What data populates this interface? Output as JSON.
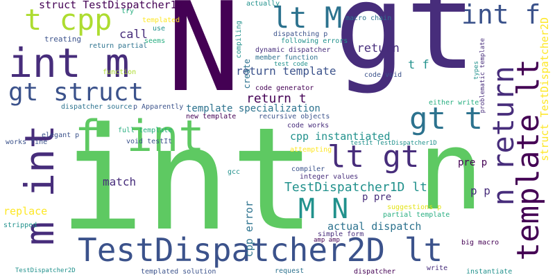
{
  "words": {
    "w1": "int",
    "w2": "gt",
    "w3": "N",
    "w4": "n",
    "w5": "TestDispatcher2D lt",
    "w6": "int m",
    "w7": "gt struct",
    "w8": "f int",
    "w9": "m int",
    "w10": "t cpp",
    "w11": "lt M",
    "w12": "int f",
    "w13": "gt t",
    "w14": "lt gt",
    "w15": "M N",
    "w16": "n return",
    "w17": "template lt",
    "w18": "struct TestDispatcher1D",
    "w19": "t return",
    "w20": "return template",
    "w21": "template specialization",
    "w22": "cpp instantiated",
    "w23": "TestDispatcher1D lt",
    "w24": "actual dispatch",
    "w25": "return t",
    "w26": "call",
    "w27": "match",
    "w28": "replace",
    "w29": "cpp error",
    "w30": "create",
    "w31": "p p",
    "w32": "p pre",
    "w33": "pre p",
    "w34": "t f",
    "w35": "struct TestDispatcher2D",
    "w36": "templated",
    "w37": "try",
    "w38": "use",
    "w39": "actually",
    "w40": "seems",
    "w41": "treating",
    "w42": "return partial",
    "w43": "compiling",
    "w44": "dispatching p",
    "w45": "following errors",
    "w46": "macro chain",
    "w47": "dynamic dispatcher",
    "w48": "member function",
    "w49": "test code",
    "w50": "function",
    "w51": "code void",
    "w52": "types",
    "w53": "problematic template",
    "w54": "code generator",
    "w55": "dispatcher source",
    "w56": "p Apparently",
    "w57": "either write",
    "w58": "new template",
    "w59": "recursive objects",
    "w60": "code works",
    "w61": "testIt TestDispatcher1D",
    "w62": "full template",
    "w63": "elegant p",
    "w64": "void testIt",
    "w65": "works fine",
    "w66": "attempting",
    "w67": "compiler",
    "w68": "gcc",
    "w69": "integer values",
    "w70": "suggestions p",
    "w71": "partial template",
    "w72": "stripped",
    "w73": "simple form",
    "w74": "amp amp",
    "w75": "big macro",
    "w76": "TestDispatcher2D",
    "w77": "templated solution",
    "w78": "request",
    "w79": "dispatcher",
    "w80": "write",
    "w81": "instantiate"
  }
}
